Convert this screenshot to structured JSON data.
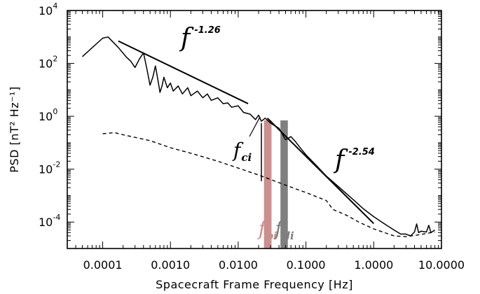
{
  "chart_data": {
    "type": "line",
    "title": "",
    "xlabel": "Spacecraft Frame Frequency [Hz]",
    "ylabel": "PSD [nT² Hz⁻¹]",
    "xscale": "log",
    "yscale": "log",
    "xlim": [
      3e-05,
      10
    ],
    "ylim": [
      1e-05,
      10000
    ],
    "grid": false,
    "x_tick_labels": [
      "0.0001",
      "0.0010",
      "0.0100",
      "0.1000",
      "1.0000",
      "10.0000"
    ],
    "x_tick_values": [
      0.0001,
      0.001,
      0.01,
      0.1,
      1,
      10
    ],
    "y_tick_values": [
      0.0001,
      0.01,
      1,
      100,
      10000
    ],
    "y_tick_labels": [
      {
        "base": "10",
        "exp": "-4"
      },
      {
        "base": "10",
        "exp": "-2"
      },
      {
        "base": "10",
        "exp": "0"
      },
      {
        "base": "10",
        "exp": "2"
      },
      {
        "base": "10",
        "exp": "4"
      }
    ],
    "series": [
      {
        "style": "solid",
        "color": "#000000",
        "points": [
          [
            5e-05,
            180
          ],
          [
            0.0001,
            900
          ],
          [
            0.00012,
            1000
          ],
          [
            0.00017,
            400
          ],
          [
            0.00022,
            180
          ],
          [
            0.00026,
            120
          ],
          [
            0.0003,
            70
          ],
          [
            0.00035,
            150
          ],
          [
            0.0004,
            250
          ],
          [
            0.00045,
            60
          ],
          [
            0.0005,
            15
          ],
          [
            0.00055,
            30
          ],
          [
            0.0006,
            80
          ],
          [
            0.00065,
            25
          ],
          [
            0.0007,
            8
          ],
          [
            0.00075,
            14
          ],
          [
            0.0008,
            30
          ],
          [
            0.0009,
            12
          ],
          [
            0.001,
            18
          ],
          [
            0.0011,
            9
          ],
          [
            0.0013,
            14
          ],
          [
            0.0015,
            7
          ],
          [
            0.0018,
            12
          ],
          [
            0.002,
            6
          ],
          [
            0.0025,
            9
          ],
          [
            0.003,
            5
          ],
          [
            0.0035,
            7
          ],
          [
            0.004,
            4
          ],
          [
            0.005,
            5
          ],
          [
            0.006,
            3
          ],
          [
            0.007,
            3.2
          ],
          [
            0.008,
            2.2
          ],
          [
            0.01,
            2.5
          ],
          [
            0.012,
            1.4
          ],
          [
            0.015,
            1.2
          ],
          [
            0.018,
            0.75
          ],
          [
            0.02,
            1.1
          ],
          [
            0.022,
            0.65
          ],
          [
            0.025,
            0.85
          ],
          [
            0.03,
            0.55
          ],
          [
            0.04,
            0.35
          ],
          [
            0.05,
            0.13
          ],
          [
            0.06,
            0.17
          ],
          [
            0.07,
            0.11
          ],
          [
            0.08,
            0.07
          ],
          [
            0.1,
            0.035
          ],
          [
            0.15,
            0.012
          ],
          [
            0.2,
            0.0055
          ],
          [
            0.3,
            0.0022
          ],
          [
            0.5,
            0.0007
          ],
          [
            0.7,
            0.00032
          ],
          [
            1,
            0.00016
          ],
          [
            1.5,
            8e-05
          ],
          [
            2,
            5e-05
          ],
          [
            2.5,
            3.5e-05
          ],
          [
            3,
            3.5e-05
          ],
          [
            3.5,
            3e-05
          ],
          [
            4,
            4.2e-05
          ],
          [
            4.3,
            8.5e-05
          ],
          [
            4.6,
            4e-05
          ],
          [
            5,
            4.5e-05
          ],
          [
            6,
            4.2e-05
          ],
          [
            6.5,
            7.5e-05
          ],
          [
            7,
            4e-05
          ],
          [
            8,
            5e-05
          ]
        ]
      },
      {
        "style": "dashed",
        "color": "#000000",
        "points": [
          [
            0.0001,
            0.22
          ],
          [
            0.00015,
            0.24
          ],
          [
            0.0002,
            0.2
          ],
          [
            0.0005,
            0.12
          ],
          [
            0.001,
            0.065
          ],
          [
            0.002,
            0.04
          ],
          [
            0.005,
            0.02
          ],
          [
            0.01,
            0.011
          ],
          [
            0.02,
            0.006
          ],
          [
            0.05,
            0.0025
          ],
          [
            0.1,
            0.0013
          ],
          [
            0.2,
            0.00065
          ],
          [
            0.25,
            0.0003
          ],
          [
            0.4,
            0.00018
          ],
          [
            0.6,
            0.0001
          ],
          [
            1,
            5.5e-05
          ],
          [
            2,
            3e-05
          ],
          [
            3,
            2.8e-05
          ],
          [
            5,
            3.4e-05
          ],
          [
            7,
            4e-05
          ],
          [
            8,
            4.2e-05
          ]
        ]
      }
    ],
    "fit_lines": [
      {
        "label_base": "f",
        "label_exp": "-1.26",
        "x": [
          0.00017,
          0.014
        ],
        "y": [
          700,
          3
        ]
      },
      {
        "label_base": "f",
        "label_exp": "-2.54",
        "x": [
          0.027,
          1.0
        ],
        "y": [
          0.85,
          8.8e-05
        ]
      }
    ],
    "markers": [
      {
        "label_base": "f",
        "label_sub": "ci",
        "x": 0.022,
        "color": "#000000"
      }
    ],
    "bands": [
      {
        "label_base": "f",
        "label_sub": "ρi",
        "x_range": [
          0.024,
          0.031
        ],
        "color": "#c9908f"
      },
      {
        "label_base": "f",
        "label_sub": "di",
        "x_range": [
          0.042,
          0.054
        ],
        "color": "#7f7f7f"
      }
    ]
  }
}
